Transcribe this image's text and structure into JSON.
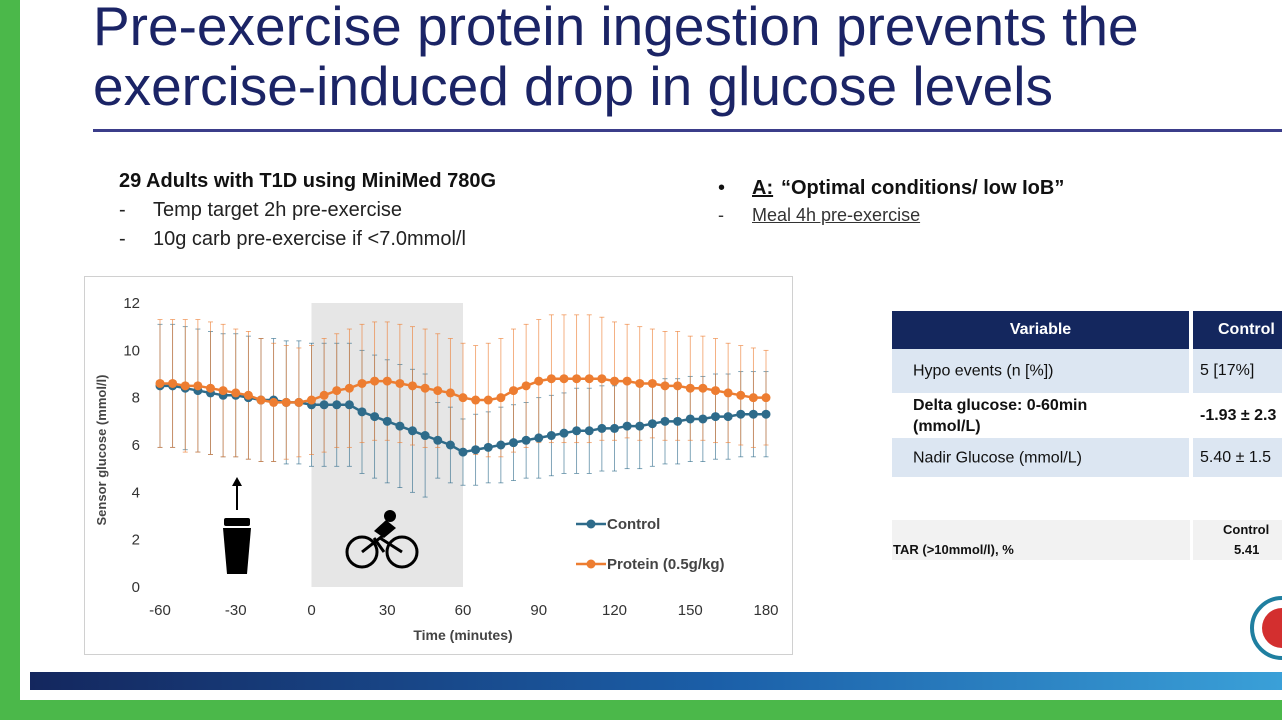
{
  "slide": {
    "title_lines": [
      "Pre-exercise protein ingestion prevents the",
      "exercise-induced drop in glucose levels"
    ],
    "left_heading": "29 Adults with T1D using MiniMed 780G",
    "left_bullets": [
      "Temp target 2h pre-exercise",
      "10g carb pre-exercise if <7.0mmol/l"
    ],
    "right_heading_label": "A:",
    "right_heading_text": "“Optimal conditions/ low IoB”",
    "right_sub": "Meal 4h pre-exercise"
  },
  "table": {
    "header": [
      "Variable",
      "Control"
    ],
    "rows": [
      [
        "Hypo events (n [%])",
        "5 [17%]"
      ],
      [
        "Delta glucose: 0-60min (mmol/L)",
        "-1.93 ± 2.3"
      ],
      [
        "Nadir Glucose (mmol/L)",
        "5.40 ± 1.5"
      ]
    ],
    "bold_rows": [
      1
    ]
  },
  "table2": {
    "header": "Control",
    "row": [
      "TAR (>10mmol/l), %",
      "5.41"
    ]
  },
  "chart_data": {
    "type": "line",
    "xlabel": "Time (minutes)",
    "ylabel": "Sensor glucose (mmol/l)",
    "x": [
      -60,
      -55,
      -50,
      -45,
      -40,
      -35,
      -30,
      -25,
      -20,
      -15,
      -10,
      -5,
      0,
      5,
      10,
      15,
      20,
      25,
      30,
      35,
      40,
      45,
      50,
      55,
      60,
      65,
      70,
      75,
      80,
      85,
      90,
      95,
      100,
      105,
      110,
      115,
      120,
      125,
      130,
      135,
      140,
      145,
      150,
      155,
      160,
      165,
      170,
      175,
      180
    ],
    "series": [
      {
        "name": "Control",
        "color": "#2e6b8a",
        "values": [
          8.5,
          8.5,
          8.4,
          8.3,
          8.2,
          8.1,
          8.1,
          8.0,
          7.9,
          7.9,
          7.8,
          7.8,
          7.7,
          7.7,
          7.7,
          7.7,
          7.4,
          7.2,
          7.0,
          6.8,
          6.6,
          6.4,
          6.2,
          6.0,
          5.7,
          5.8,
          5.9,
          6.0,
          6.1,
          6.2,
          6.3,
          6.4,
          6.5,
          6.6,
          6.6,
          6.7,
          6.7,
          6.8,
          6.8,
          6.9,
          7.0,
          7.0,
          7.1,
          7.1,
          7.2,
          7.2,
          7.3,
          7.3,
          7.3
        ],
        "errors": [
          2.6,
          2.6,
          2.6,
          2.6,
          2.6,
          2.6,
          2.6,
          2.6,
          2.6,
          2.6,
          2.6,
          2.6,
          2.6,
          2.6,
          2.6,
          2.6,
          2.6,
          2.6,
          2.6,
          2.6,
          2.6,
          2.6,
          1.6,
          1.6,
          1.4,
          1.5,
          1.5,
          1.6,
          1.6,
          1.6,
          1.7,
          1.7,
          1.7,
          1.8,
          1.8,
          1.8,
          1.8,
          1.8,
          1.8,
          1.8,
          1.8,
          1.8,
          1.8,
          1.8,
          1.8,
          1.8,
          1.8,
          1.8,
          1.8
        ]
      },
      {
        "name": "Protein (0.5g/kg)",
        "color": "#ed7d31",
        "values": [
          8.6,
          8.6,
          8.5,
          8.5,
          8.4,
          8.3,
          8.2,
          8.1,
          7.9,
          7.8,
          7.8,
          7.8,
          7.9,
          8.1,
          8.3,
          8.4,
          8.6,
          8.7,
          8.7,
          8.6,
          8.5,
          8.4,
          8.3,
          8.2,
          8.0,
          7.9,
          7.9,
          8.0,
          8.3,
          8.5,
          8.7,
          8.8,
          8.8,
          8.8,
          8.8,
          8.8,
          8.7,
          8.7,
          8.6,
          8.6,
          8.5,
          8.5,
          8.4,
          8.4,
          8.3,
          8.2,
          8.1,
          8.0,
          8.0
        ],
        "errors": [
          2.7,
          2.7,
          2.8,
          2.8,
          2.8,
          2.8,
          2.7,
          2.7,
          2.6,
          2.5,
          2.4,
          2.3,
          2.3,
          2.4,
          2.4,
          2.5,
          2.5,
          2.5,
          2.5,
          2.5,
          2.5,
          2.5,
          2.4,
          2.3,
          2.3,
          2.3,
          2.4,
          2.5,
          2.6,
          2.6,
          2.6,
          2.7,
          2.7,
          2.7,
          2.7,
          2.6,
          2.5,
          2.4,
          2.4,
          2.3,
          2.3,
          2.3,
          2.2,
          2.2,
          2.2,
          2.1,
          2.1,
          2.1,
          2.0
        ]
      }
    ],
    "xlim": [
      -60,
      180
    ],
    "ylim": [
      0,
      12
    ],
    "xticks": [
      -60,
      -30,
      0,
      30,
      60,
      90,
      120,
      150,
      180
    ],
    "yticks": [
      0,
      2,
      4,
      6,
      8,
      10,
      12
    ],
    "shaded_x": [
      0,
      60
    ],
    "grid": false
  }
}
